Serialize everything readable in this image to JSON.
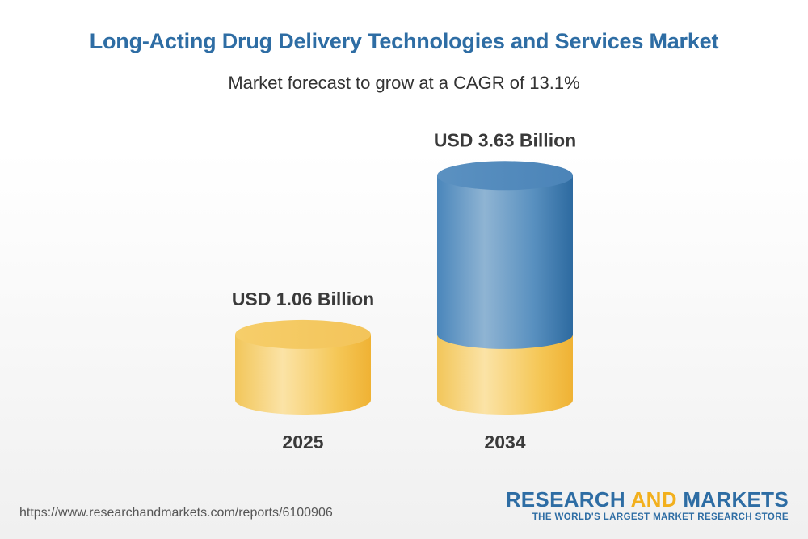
{
  "chart_data": {
    "type": "bar",
    "title": "Long-Acting Drug Delivery Technologies and Services Market",
    "subtitle": "Market forecast to grow at a CAGR of 13.1%",
    "categories": [
      "2025",
      "2034"
    ],
    "values": [
      1.06,
      3.63
    ],
    "value_labels": [
      "USD 1.06 Billion",
      "USD 3.63 Billion"
    ],
    "unit": "USD Billion",
    "colors": {
      "base": "#f5c54c",
      "growth": "#3f7fb3"
    }
  },
  "footer": {
    "url": "https://www.researchandmarkets.com/reports/6100906",
    "brand_part1": "RESEARCH ",
    "brand_part2": "AND",
    "brand_part3": " MARKETS",
    "brand_tagline": "THE WORLD'S LARGEST MARKET RESEARCH STORE"
  }
}
